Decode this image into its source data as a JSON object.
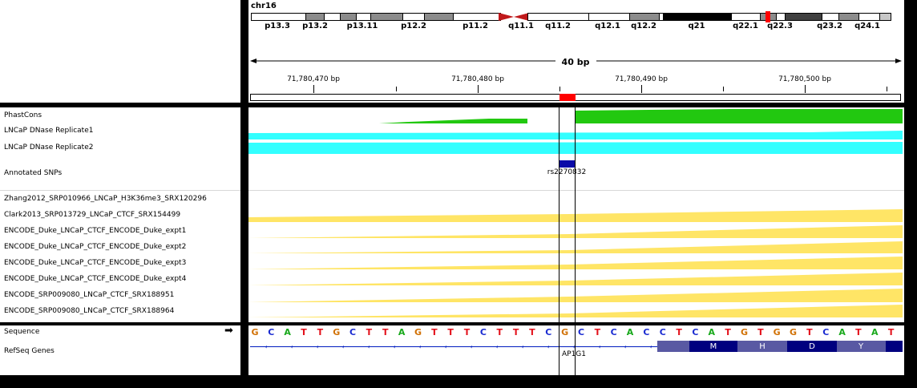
{
  "header": {
    "chromosome": "chr16",
    "cytobands": [
      "p13.3",
      "p13.2",
      "p13.11",
      "p12.2",
      "p11.2",
      "q11.1",
      "q11.2",
      "q12.1",
      "q12.2",
      "q21",
      "q22.1",
      "q22.3",
      "q23.2",
      "q24.1"
    ],
    "span_label": "40 bp",
    "ruler_ticks": [
      "71,780,470 bp",
      "71,780,480 bp",
      "71,780,490 bp",
      "71,780,500 bp"
    ]
  },
  "tracks": {
    "phastcons": "PhastCons",
    "dnase1": "LNCaP DNase Replicate1",
    "dnase2": "LNCaP DNase Replicate2",
    "snps": "Annotated SNPs",
    "zhang": "Zhang2012_SRP010966_LNCaP_H3K36me3_SRX120296",
    "clark": "Clark2013_SRP013729_LNCaP_CTCF_SRX154499",
    "duke1": "ENCODE_Duke_LNCaP_CTCF_ENCODE_Duke_expt1",
    "duke2": "ENCODE_Duke_LNCaP_CTCF_ENCODE_Duke_expt2",
    "duke3": "ENCODE_Duke_LNCaP_CTCF_ENCODE_Duke_expt3",
    "duke4": "ENCODE_Duke_LNCaP_CTCF_ENCODE_Duke_expt4",
    "srx951": "ENCODE_SRP009080_LNCaP_CTCF_SRX188951",
    "srx964": "ENCODE_SRP009080_LNCaP_CTCF_SRX188964",
    "sequence": "Sequence",
    "refseq": "RefSeq Genes"
  },
  "snp_id": "rs2270832",
  "gene_name": "AP1G1",
  "sequence_bases": [
    "G",
    "C",
    "A",
    "T",
    "T",
    "G",
    "C",
    "T",
    "T",
    "A",
    "G",
    "T",
    "T",
    "T",
    "C",
    "T",
    "T",
    "T",
    "C",
    "G",
    "C",
    "T",
    "C",
    "A",
    "C",
    "C",
    "T",
    "C",
    "A",
    "T",
    "G",
    "T",
    "G",
    "G",
    "T",
    "C",
    "A",
    "T",
    "A",
    "T"
  ],
  "amino_acids": [
    "M",
    "H",
    "D",
    "Y"
  ],
  "strand_arrow": "➡",
  "colors": {
    "A": "#17a81a",
    "C": "#1a2bd1",
    "G": "#d17105",
    "T": "#e3101a",
    "phastcons": "#22c810",
    "dnase": "#33ffff",
    "chip": "#ffe566",
    "gene": "#00007f",
    "gene_utr": "#5959a3",
    "snp": "#0a0aa8",
    "region": "#ff0000"
  }
}
